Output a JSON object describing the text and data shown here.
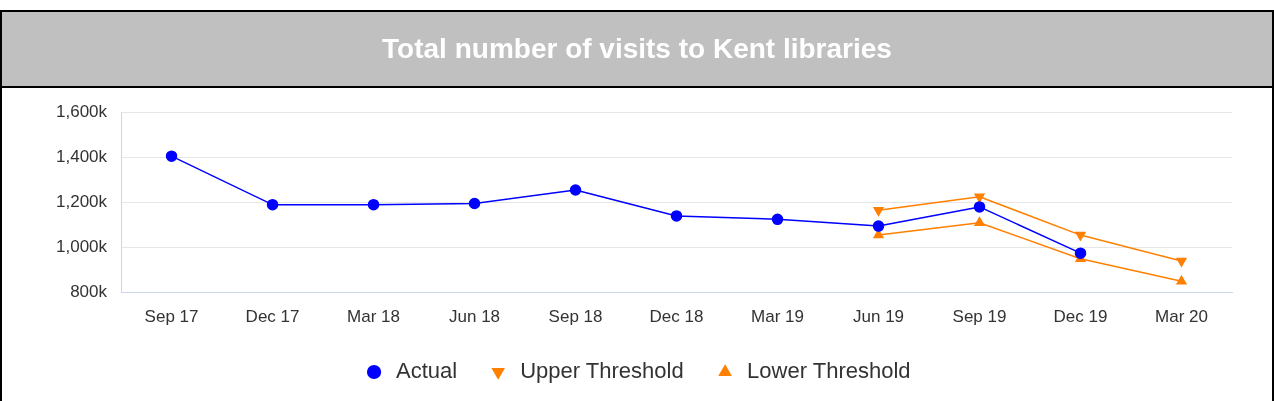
{
  "chart_data": {
    "type": "line",
    "title": "Total number of visits to Kent libraries",
    "categories": [
      "Sep 17",
      "Dec 17",
      "Mar 18",
      "Jun 18",
      "Sep 18",
      "Dec 18",
      "Mar 19",
      "Jun 19",
      "Sep 19",
      "Dec 19",
      "Mar 20"
    ],
    "series": [
      {
        "name": "Actual",
        "color": "#0000ff",
        "marker": "circle",
        "values": [
          1405,
          1190,
          1190,
          1195,
          1255,
          1140,
          1125,
          1095,
          1180,
          975,
          null
        ]
      },
      {
        "name": "Upper Threshold",
        "color": "#ff8000",
        "marker": "triangle",
        "values": [
          null,
          null,
          null,
          null,
          null,
          null,
          null,
          1165,
          1225,
          1055,
          940
        ]
      },
      {
        "name": "Lower Threshold",
        "color": "#ff8000",
        "marker": "triangle",
        "values": [
          null,
          null,
          null,
          null,
          null,
          null,
          null,
          1055,
          1110,
          950,
          850
        ]
      }
    ],
    "ylim": [
      800,
      1600
    ],
    "yticks": [
      {
        "value": 800,
        "label": "800k"
      },
      {
        "value": 1000,
        "label": "1,000k"
      },
      {
        "value": 1200,
        "label": "1,200k"
      },
      {
        "value": 1400,
        "label": "1,400k"
      },
      {
        "value": 1600,
        "label": "1,600k"
      }
    ],
    "grid": "y",
    "legend": "bottom",
    "line_style": "solid"
  }
}
